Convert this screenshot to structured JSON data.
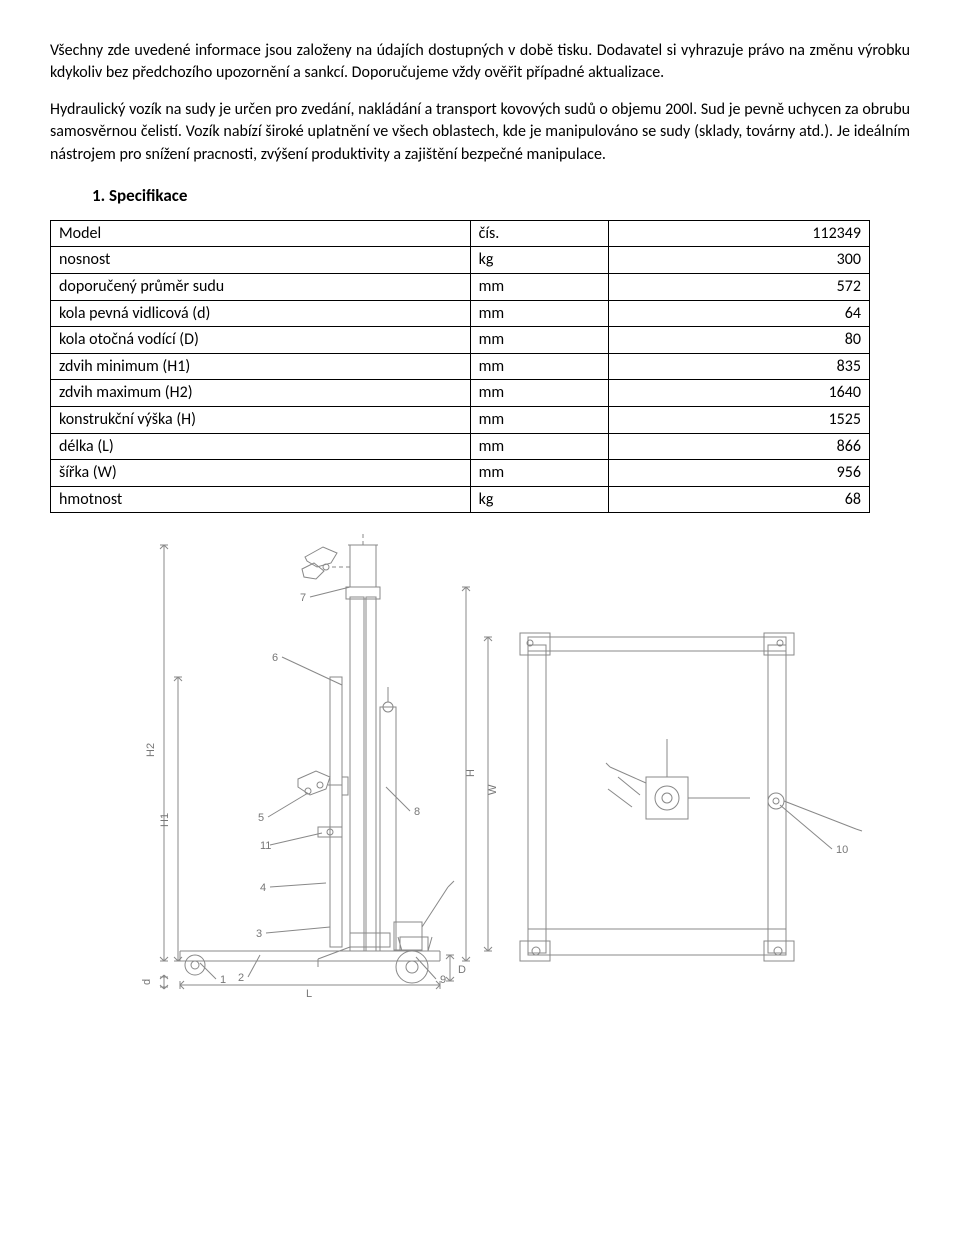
{
  "paragraph1": "Všechny zde uvedené informace jsou založeny na údajích dostupných v době tisku. Dodavatel si vyhrazuje právo na změnu výrobku  kdykoliv bez předchozího upozornění a sankcí.  Doporučujeme vždy ověřit případné aktualizace.",
  "paragraph2": "Hydraulický vozík na sudy je určen pro zvedání, nakládání a transport kovových sudů o objemu 200l. Sud je pevně uchycen za obrubu samosvěrnou čelistí. Vozík nabízí široké uplatnění ve všech oblastech, kde je manipulováno se sudy (sklady, továrny atd.). Je ideálním nástrojem pro snížení pracnosti, zvýšení produktivity a zajištění bezpečné manipulace.",
  "section_title": "1.    Specifikace",
  "spec_table": {
    "columns": [
      "label",
      "unit",
      "value"
    ],
    "rows": [
      [
        "Model",
        "čís.",
        "112349"
      ],
      [
        "nosnost",
        "kg",
        "300"
      ],
      [
        "doporučený průměr sudu",
        "mm",
        "572"
      ],
      [
        "kola pevná vidlicová (d)",
        "mm",
        "64"
      ],
      [
        "kola otočná vodící (D)",
        "mm",
        "80"
      ],
      [
        "zdvih minimum (H1)",
        "mm",
        "835"
      ],
      [
        "zdvih maximum   (H2)",
        "mm",
        "1640"
      ],
      [
        "konstrukční výška (H)",
        "mm",
        "1525"
      ],
      [
        "délka (L)",
        "mm",
        "866"
      ],
      [
        "šířka (W)",
        "mm",
        "956"
      ],
      [
        "hmotnost",
        "kg",
        "68"
      ]
    ]
  },
  "diagram": {
    "stroke_color": "#888888",
    "stroke_width": 1,
    "label_color": "#777777",
    "label_font_size": 11,
    "dim_labels": {
      "H2": "H2",
      "H1": "H1",
      "d": "d",
      "L": "L",
      "D": "D",
      "H": "H",
      "W": "W"
    },
    "callouts": [
      "1",
      "2",
      "3",
      "4",
      "5",
      "6",
      "7",
      "8",
      "9",
      "10",
      "11"
    ]
  }
}
